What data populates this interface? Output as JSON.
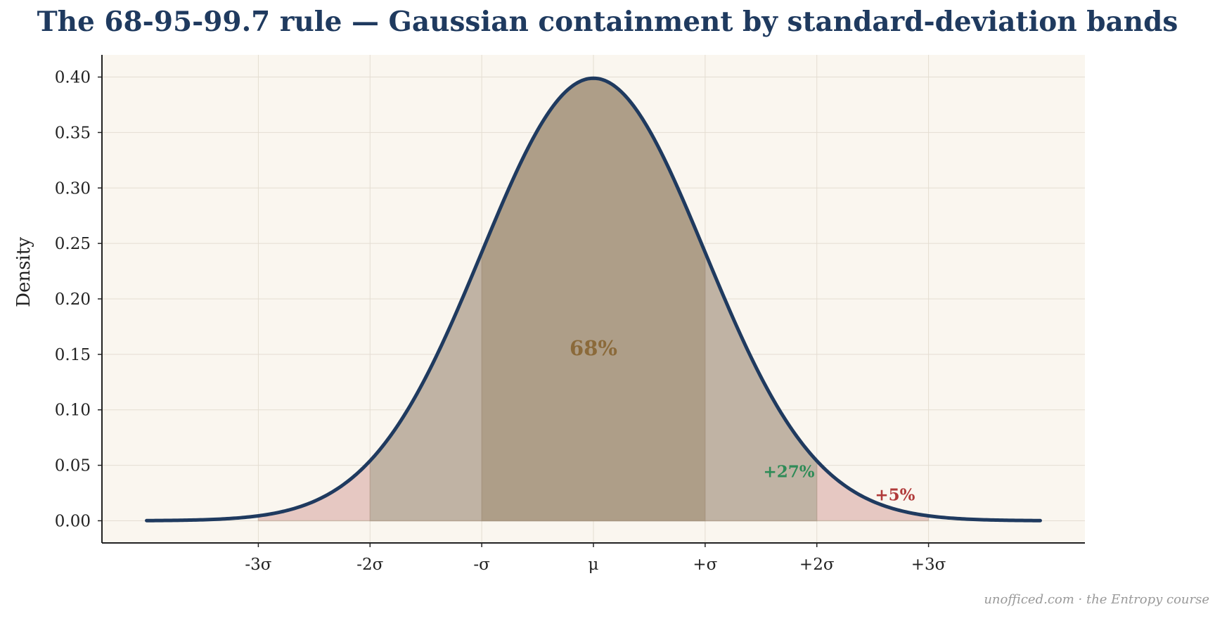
{
  "chart_data": {
    "type": "area",
    "title": "The 68-95-99.7 rule — Gaussian containment by standard-deviation bands",
    "xlabel": "",
    "ylabel": "Density",
    "xlim": [
      -4.4,
      4.4
    ],
    "ylim": [
      -0.02,
      0.42
    ],
    "x_ticks": [
      {
        "value": -3,
        "label": "-3σ"
      },
      {
        "value": -2,
        "label": "-2σ"
      },
      {
        "value": -1,
        "label": "-σ"
      },
      {
        "value": 0,
        "label": "μ"
      },
      {
        "value": 1,
        "label": "+σ"
      },
      {
        "value": 2,
        "label": "+2σ"
      },
      {
        "value": 3,
        "label": "+3σ"
      }
    ],
    "y_ticks": [
      {
        "value": 0.0,
        "label": "0.00"
      },
      {
        "value": 0.05,
        "label": "0.05"
      },
      {
        "value": 0.1,
        "label": "0.10"
      },
      {
        "value": 0.15,
        "label": "0.15"
      },
      {
        "value": 0.2,
        "label": "0.20"
      },
      {
        "value": 0.25,
        "label": "0.25"
      },
      {
        "value": 0.3,
        "label": "0.30"
      },
      {
        "value": 0.35,
        "label": "0.35"
      },
      {
        "value": 0.4,
        "label": "0.40"
      }
    ],
    "curve": {
      "distribution": "standard normal",
      "x_range": [
        -4,
        4
      ],
      "peak": 0.399,
      "color": "#1f3a5f"
    },
    "bands": [
      {
        "from": -3,
        "to": 3,
        "color": "#e6c8c2"
      },
      {
        "from": -2,
        "to": 2,
        "color": "#c0b3a4"
      },
      {
        "from": -1,
        "to": 1,
        "color": "#ae9e88"
      }
    ],
    "annotations": [
      {
        "text": "68%",
        "x": 0,
        "y": 0.155,
        "color": "#8b6a3a"
      },
      {
        "text": "+27%",
        "x": 1.75,
        "y": 0.045,
        "color": "#2e8b57"
      },
      {
        "text": "+5%",
        "x": 2.7,
        "y": 0.024,
        "color": "#b03a3a"
      }
    ],
    "grid": true,
    "background": "#faf6ef"
  },
  "credit": "unofficed.com · the Entropy course"
}
